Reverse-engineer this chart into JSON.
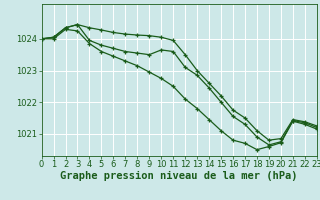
{
  "background_color": "#cde8e8",
  "plot_bg_color": "#cde8e8",
  "grid_color": "#b0d8d8",
  "line_color": "#1a5c1a",
  "xlabel": "Graphe pression niveau de la mer (hPa)",
  "xlabel_fontsize": 7.5,
  "tick_fontsize": 6,
  "yticks": [
    1021,
    1022,
    1023,
    1024
  ],
  "ylim": [
    1020.3,
    1025.1
  ],
  "xlim": [
    0,
    23
  ],
  "xticks": [
    0,
    1,
    2,
    3,
    4,
    5,
    6,
    7,
    8,
    9,
    10,
    11,
    12,
    13,
    14,
    15,
    16,
    17,
    18,
    19,
    20,
    21,
    22,
    23
  ],
  "series": [
    {
      "x": [
        0,
        1,
        2,
        3,
        4,
        5,
        6,
        7,
        8,
        9,
        10,
        11,
        12,
        13,
        14,
        15,
        16,
        17,
        18,
        19,
        20,
        21,
        22,
        23
      ],
      "y": [
        1024.0,
        1024.05,
        1024.35,
        1024.45,
        1024.35,
        1024.28,
        1024.2,
        1024.15,
        1024.12,
        1024.1,
        1024.05,
        1023.95,
        1023.5,
        1023.0,
        1022.6,
        1022.2,
        1021.75,
        1021.5,
        1021.1,
        1020.8,
        1020.85,
        1021.45,
        1021.38,
        1021.25
      ]
    },
    {
      "x": [
        0,
        1,
        2,
        3,
        4,
        5,
        6,
        7,
        8,
        9,
        10,
        11,
        12,
        13,
        14,
        15,
        16,
        17,
        18,
        19,
        20,
        21,
        22,
        23
      ],
      "y": [
        1024.0,
        1024.05,
        1024.35,
        1024.45,
        1023.95,
        1023.8,
        1023.7,
        1023.6,
        1023.55,
        1023.5,
        1023.65,
        1023.6,
        1023.1,
        1022.85,
        1022.45,
        1022.0,
        1021.55,
        1021.3,
        1020.9,
        1020.65,
        1020.75,
        1021.42,
        1021.35,
        1021.2
      ]
    },
    {
      "x": [
        0,
        1,
        2,
        3,
        4,
        5,
        6,
        7,
        8,
        9,
        10,
        11,
        12,
        13,
        14,
        15,
        16,
        17,
        18,
        19,
        20,
        21,
        22,
        23
      ],
      "y": [
        1024.0,
        1024.0,
        1024.3,
        1024.25,
        1023.85,
        1023.6,
        1023.45,
        1023.3,
        1023.15,
        1022.95,
        1022.75,
        1022.5,
        1022.1,
        1021.8,
        1021.45,
        1021.1,
        1020.8,
        1020.7,
        1020.5,
        1020.6,
        1020.72,
        1021.4,
        1021.3,
        1021.15
      ]
    }
  ]
}
